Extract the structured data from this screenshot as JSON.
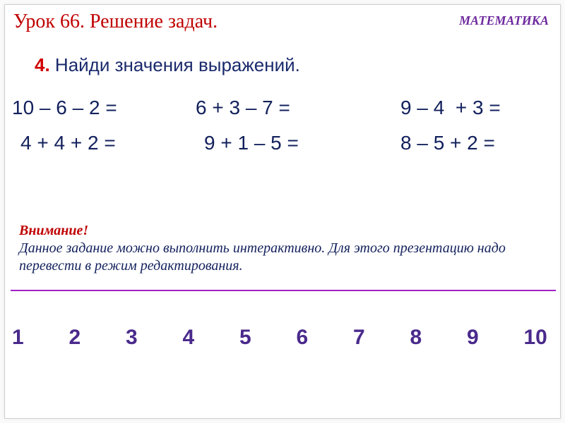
{
  "header": {
    "lesson_title": "Урок 66. Решение задач.",
    "subject": "МАТЕМАТИКА"
  },
  "task": {
    "number": "4.",
    "text": " Найди значения выражений."
  },
  "expressions": {
    "row1": {
      "c1": "10 – 6 – 2 =",
      "c2": "6 + 3 – 7 =",
      "c3": "9 – 4  + 3 ="
    },
    "row2": {
      "c1": "4 + 4 + 2 =",
      "c2": "9 + 1 – 5 =",
      "c3": "8 – 5 + 2 ="
    }
  },
  "note": {
    "head": "Внимание!",
    "body": "Данное задание можно выполнить интерактивно. Для этого презентацию надо перевести в режим редактирования."
  },
  "numbers": [
    "1",
    "2",
    "3",
    "4",
    "5",
    "6",
    "7",
    "8",
    "9",
    "10"
  ],
  "style": {
    "text_color": "#12205c",
    "accent_red": "#c00000",
    "subject_color": "#6e2a9e",
    "divider_color": "#a020c8",
    "number_color": "#4a2a8c",
    "bg": "#ffffff",
    "title_fontsize": 28,
    "expr_fontsize": 28,
    "note_fontsize": 20,
    "numbers_fontsize": 30
  }
}
